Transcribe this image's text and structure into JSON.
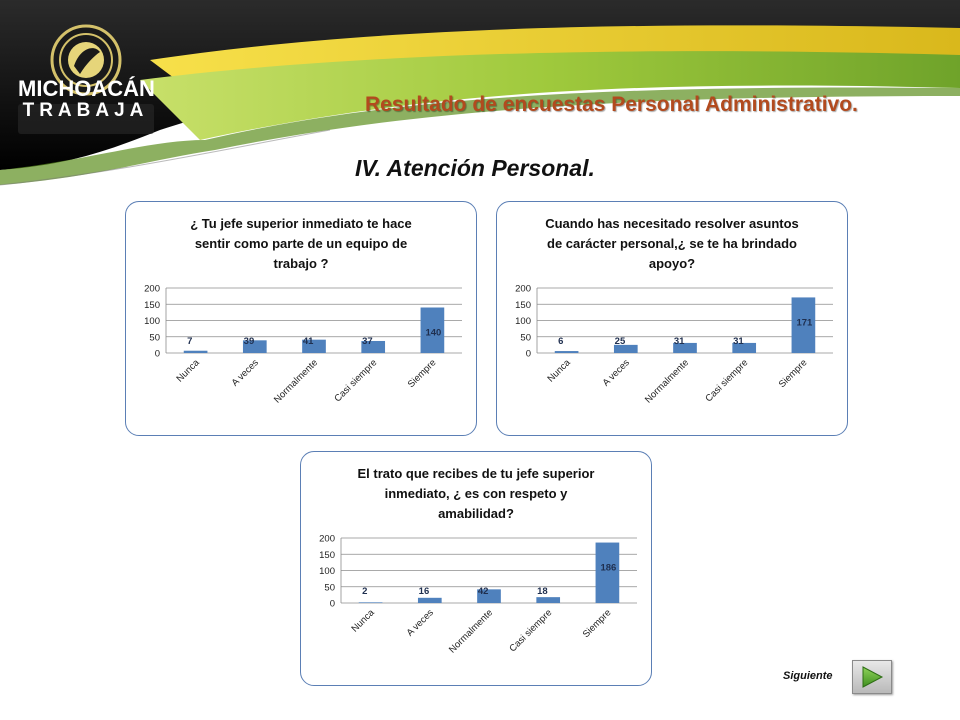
{
  "header": {
    "logo_line1": "MICHOACÁN",
    "logo_line2": "TRABAJA",
    "title": "Resultado de encuestas Personal Administrativo."
  },
  "section_title": "IV. Atención Personal.",
  "colors": {
    "bar": "#4f81bd",
    "panel_border": "#5b7fb5",
    "title_orange": "#b24a1e",
    "banner_green": "#9fc93c",
    "banner_dark": "#111111"
  },
  "chart_data": [
    {
      "type": "bar",
      "title_lines": [
        "¿ Tu jefe superior  inmediato te hace",
        "sentir como parte de un equipo de",
        "trabajo ?"
      ],
      "categories": [
        "Nunca",
        "A veces",
        "Normalmente",
        "Casi siempre",
        "Siempre"
      ],
      "values": [
        7,
        39,
        41,
        37,
        140
      ],
      "ylim": [
        0,
        200
      ],
      "yticks": [
        0,
        50,
        100,
        150,
        200
      ],
      "grid": true,
      "legend": "none"
    },
    {
      "type": "bar",
      "title_lines": [
        "Cuando has necesitado resolver asuntos",
        "de carácter personal,¿ se te ha brindado",
        "apoyo?"
      ],
      "categories": [
        "Nunca",
        "A veces",
        "Normalmente",
        "Casi siempre",
        "Siempre"
      ],
      "values": [
        6,
        25,
        31,
        31,
        171
      ],
      "ylim": [
        0,
        200
      ],
      "yticks": [
        0,
        50,
        100,
        150,
        200
      ],
      "grid": true,
      "legend": "none"
    },
    {
      "type": "bar",
      "title_lines": [
        "El trato que recibes de tu jefe superior",
        "inmediato, ¿ es con respeto y",
        "amabilidad?"
      ],
      "categories": [
        "Nunca",
        "A veces",
        "Normalmente",
        "Casi siempre",
        "Siempre"
      ],
      "values": [
        2,
        16,
        42,
        18,
        186
      ],
      "ylim": [
        0,
        200
      ],
      "yticks": [
        0,
        50,
        100,
        150,
        200
      ],
      "grid": true,
      "legend": "none"
    }
  ],
  "navigation": {
    "next_label": "Siguiente",
    "next_icon": "play-arrow-icon"
  }
}
